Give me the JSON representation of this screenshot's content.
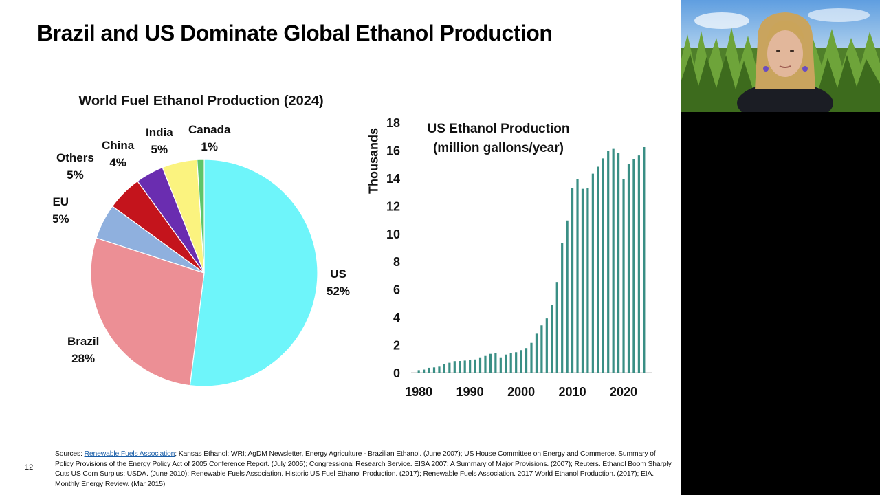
{
  "slide": {
    "title": "Brazil and US Dominate Global Ethanol Production",
    "page_number": "12"
  },
  "pie": {
    "title": "World Fuel Ethanol Production (2024)",
    "labels": [
      {
        "name": "US",
        "pct": "52%"
      },
      {
        "name": "Brazil",
        "pct": "28%"
      },
      {
        "name": "EU",
        "pct": "5%"
      },
      {
        "name": "Others",
        "pct": "5%"
      },
      {
        "name": "China",
        "pct": "4%"
      },
      {
        "name": "India",
        "pct": "5%"
      },
      {
        "name": "Canada",
        "pct": "1%"
      }
    ]
  },
  "bar": {
    "title_line1": "US Ethanol Production",
    "title_line2": "(million gallons/year)",
    "y_unit_label": "Thousands"
  },
  "chart_data": [
    {
      "type": "pie",
      "title": "World Fuel Ethanol Production (2024)",
      "slices": [
        {
          "name": "US",
          "value": 52,
          "color": "#6ef5fa"
        },
        {
          "name": "Brazil",
          "value": 28,
          "color": "#ec8f95"
        },
        {
          "name": "EU",
          "value": 5,
          "color": "#8fb0de"
        },
        {
          "name": "Others",
          "value": 5,
          "color": "#c4141c"
        },
        {
          "name": "China",
          "value": 4,
          "color": "#6a2db0"
        },
        {
          "name": "India",
          "value": 5,
          "color": "#fbf37f"
        },
        {
          "name": "Canada",
          "value": 1,
          "color": "#5ec56a"
        }
      ]
    },
    {
      "type": "bar",
      "title": "US Ethanol Production (million gallons/year)",
      "ylabel": "Thousands",
      "ylim": [
        0,
        18
      ],
      "yticks": [
        "0",
        "2",
        "4",
        "6",
        "8",
        "10",
        "12",
        "14",
        "16",
        "18"
      ],
      "xticks": [
        "1980",
        "1990",
        "2000",
        "2010",
        "2020"
      ],
      "color": "#3a8f85",
      "x": [
        1980,
        1981,
        1982,
        1983,
        1984,
        1985,
        1986,
        1987,
        1988,
        1989,
        1990,
        1991,
        1992,
        1993,
        1994,
        1995,
        1996,
        1997,
        1998,
        1999,
        2000,
        2001,
        2002,
        2003,
        2004,
        2005,
        2006,
        2007,
        2008,
        2009,
        2010,
        2011,
        2012,
        2013,
        2014,
        2015,
        2016,
        2017,
        2018,
        2019,
        2020,
        2021,
        2022,
        2023,
        2024
      ],
      "values": [
        0.18,
        0.22,
        0.35,
        0.38,
        0.43,
        0.61,
        0.71,
        0.83,
        0.84,
        0.87,
        0.9,
        0.95,
        1.1,
        1.2,
        1.35,
        1.4,
        1.1,
        1.3,
        1.4,
        1.47,
        1.62,
        1.77,
        2.14,
        2.8,
        3.4,
        3.9,
        4.88,
        6.52,
        9.31,
        10.94,
        13.3,
        13.93,
        13.22,
        13.29,
        14.31,
        14.81,
        15.41,
        15.94,
        16.09,
        15.81,
        13.94,
        15.02,
        15.36,
        15.62,
        16.22
      ]
    }
  ],
  "footer": {
    "prefix": "Sources: ",
    "link_text": "Renewable Fuels Association",
    "rest": "; Kansas Ethanol; WRI; AgDM Newsletter, Energy Agriculture - Brazilian Ethanol. (June 2007); US House Committee on Energy and Commerce. Summary of Policy Provisions of the Energy Policy Act of 2005 Conference Report. (July 2005); Congressional Research Service. EISA 2007: A Summary of Major Provisions. (2007); Reuters. Ethanol Boom Sharply Cuts US Corn Surplus: USDA. (June 2010); Renewable Fuels Association. Historic US Fuel Ethanol Production. (2017); Renewable Fuels Association. 2017 World Ethanol Production. (2017); EIA. Monthly Energy Review. (Mar 2015)"
  }
}
